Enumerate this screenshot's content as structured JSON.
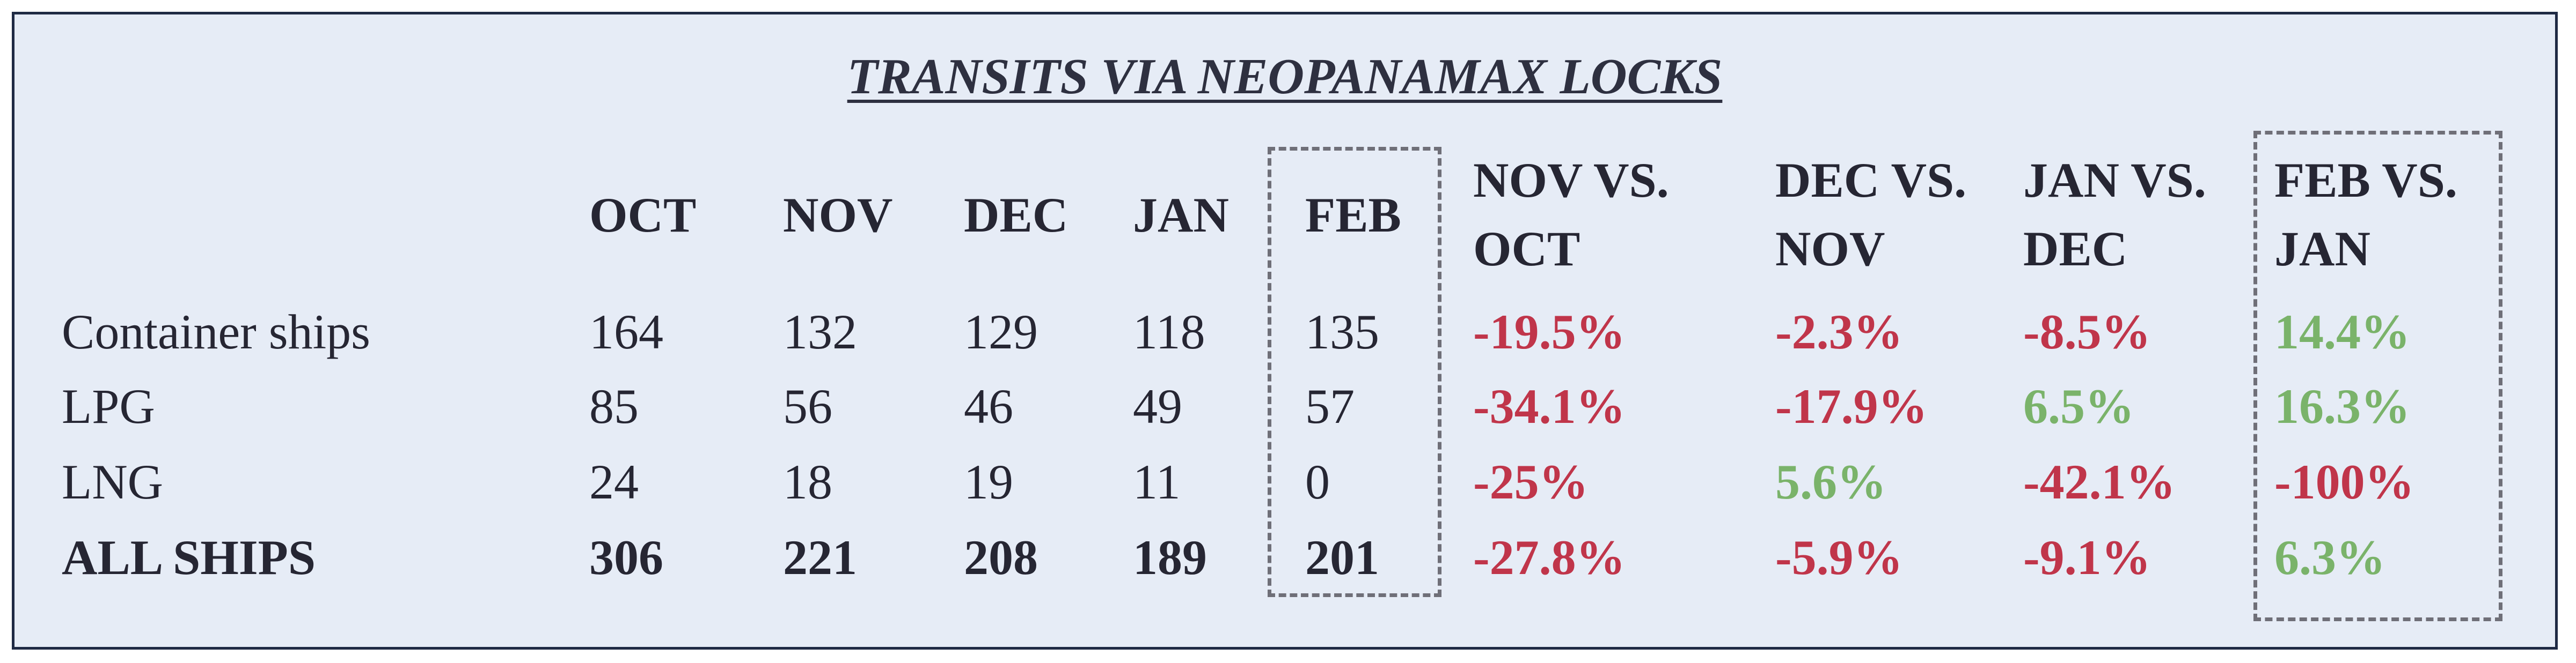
{
  "header": {
    "title": "TRANSITS VIA NEOPANAMAX LOCKS"
  },
  "table": {
    "columns": [
      "OCT",
      "NOV",
      "DEC",
      "JAN",
      "FEB",
      "NOV VS. OCT",
      "DEC VS. NOV",
      "JAN VS. DEC",
      "FEB VS. JAN"
    ],
    "rows": [
      {
        "label": "Container ships",
        "bold": false,
        "values": [
          164,
          132,
          129,
          118,
          135
        ],
        "changes": [
          "-19.5%",
          "-2.3%",
          "-8.5%",
          "14.4%"
        ]
      },
      {
        "label": "LPG",
        "bold": false,
        "values": [
          85,
          56,
          46,
          49,
          57
        ],
        "changes": [
          "-34.1%",
          "-17.9%",
          "6.5%",
          "16.3%"
        ]
      },
      {
        "label": "LNG",
        "bold": false,
        "values": [
          24,
          18,
          19,
          11,
          0
        ],
        "changes": [
          "-25%",
          "5.6%",
          "-42.1%",
          "-100%"
        ]
      },
      {
        "label": "ALL SHIPS",
        "bold": true,
        "values": [
          306,
          221,
          208,
          189,
          201
        ],
        "changes": [
          "-27.8%",
          "-5.9%",
          "-9.1%",
          "6.3%"
        ]
      }
    ],
    "colors": {
      "negative": "#c0354a",
      "positive": "#7ab36a"
    }
  }
}
